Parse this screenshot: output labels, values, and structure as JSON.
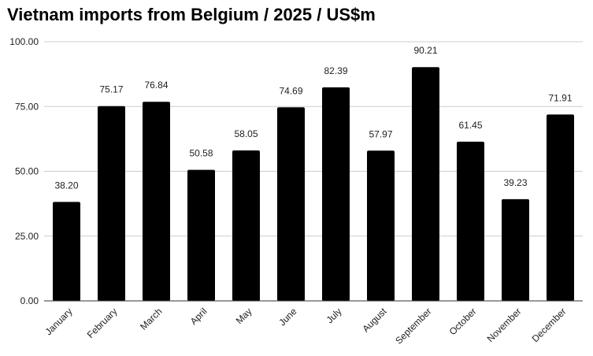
{
  "chart_data": {
    "type": "bar",
    "title": "Vietnam imports from Belgium / 2025 / US$m",
    "xlabel": "",
    "ylabel": "",
    "categories": [
      "January",
      "February",
      "March",
      "April",
      "May",
      "June",
      "July",
      "August",
      "September",
      "October",
      "November",
      "December"
    ],
    "values": [
      38.2,
      75.17,
      76.84,
      50.58,
      58.05,
      74.69,
      82.39,
      57.97,
      90.21,
      61.45,
      39.23,
      71.91
    ],
    "value_labels": [
      "38.20",
      "75.17",
      "76.84",
      "50.58",
      "58.05",
      "74.69",
      "82.39",
      "57.97",
      "90.21",
      "61.45",
      "39.23",
      "71.91"
    ],
    "ylim": [
      0,
      100
    ],
    "yticks": [
      0,
      25,
      50,
      75,
      100
    ],
    "ytick_labels": [
      "0.00",
      "25.00",
      "50.00",
      "75.00",
      "100.00"
    ],
    "grid": true,
    "legend": "none",
    "bar_color": "#000000",
    "grid_color": "#cccccc"
  }
}
